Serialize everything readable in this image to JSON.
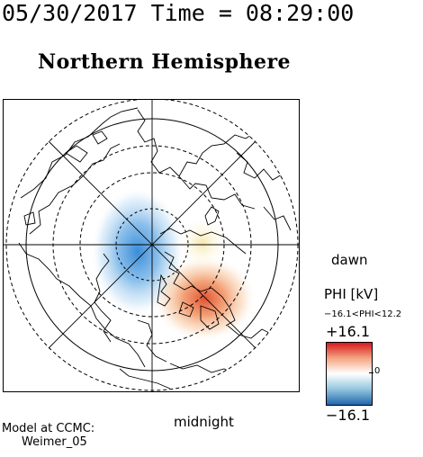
{
  "header": {
    "timestamp": "05/30/2017 Time = 08:29:00",
    "title": "Northern Hemisphere"
  },
  "map": {
    "dawn_label": "dawn",
    "midnight_label": "midnight"
  },
  "colorbar": {
    "title": "PHI [kV]",
    "range_text": "−16.1<PHI<12.2",
    "max_label": "+16.1",
    "min_label": "−16.1",
    "zero_label": "0",
    "colors": [
      "#d7191c",
      "#f4a582",
      "#ffffff",
      "#92c5de",
      "#2166ac"
    ]
  },
  "credit": {
    "line1": "Model at CCMC:",
    "line2": "Weimer_05"
  }
}
